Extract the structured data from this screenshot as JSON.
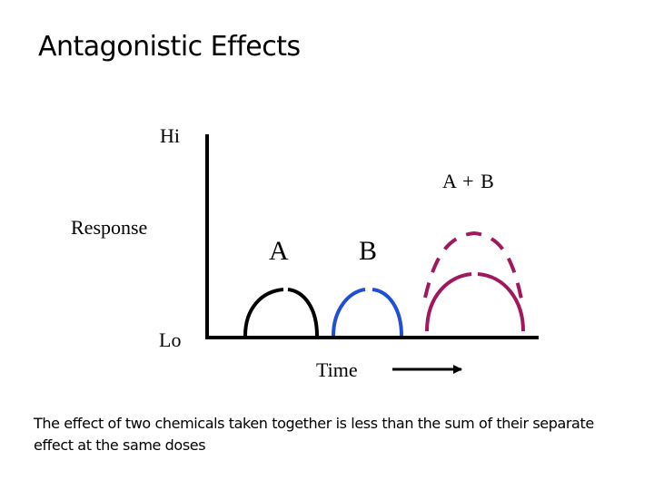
{
  "title": "Antagonistic Effects",
  "y_axis": {
    "top_label": "Hi",
    "mid_label": "Response",
    "bottom_label": "Lo"
  },
  "x_axis": {
    "label": "Time"
  },
  "curves": [
    {
      "label": "A",
      "color": "#000000"
    },
    {
      "label": "B",
      "color": "#1f4fd6"
    },
    {
      "label": "A + B",
      "color": "#a0185e"
    }
  ],
  "caption": "The effect of two chemicals taken together is less than the sum of their separate effect at the same doses"
}
